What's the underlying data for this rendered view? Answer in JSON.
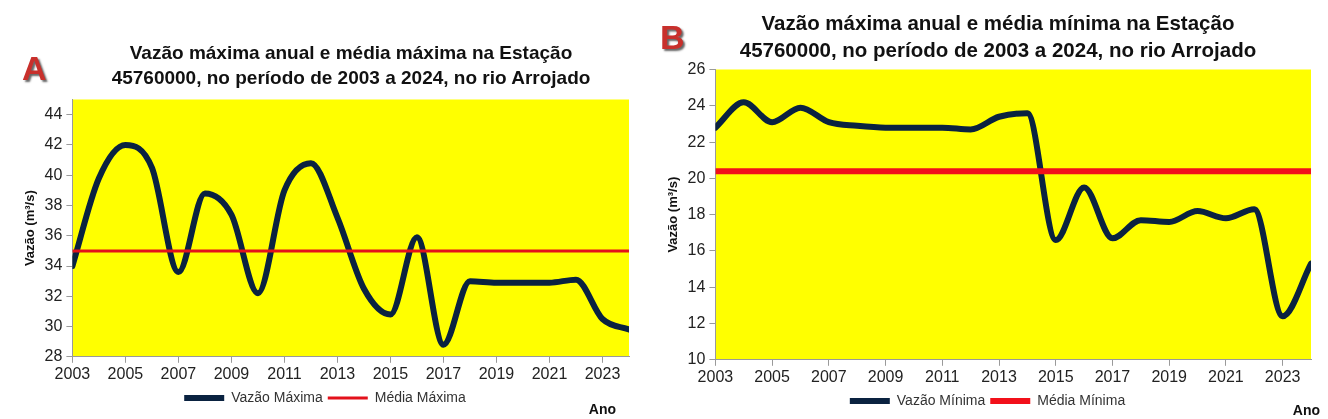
{
  "chart_data": [
    {
      "type": "line",
      "title": "Vazão máxima anual e média máxima na Estação\n45760000, no período de 2003 a 2024, no rio Arrojado",
      "xlabel": "Ano",
      "ylabel": "Vazão (m³/s)",
      "annotations": [
        "A"
      ],
      "x": [
        2003,
        2004,
        2005,
        2006,
        2007,
        2008,
        2009,
        2010,
        2011,
        2012,
        2013,
        2014,
        2015,
        2016,
        2017,
        2018,
        2019,
        2020,
        2021,
        2022,
        2023,
        2024
      ],
      "series": [
        {
          "name": "Vazão Máxima",
          "color": "#0a2240",
          "values": [
            34.0,
            39.8,
            42.0,
            40.5,
            33.6,
            38.8,
            37.4,
            32.2,
            39.0,
            40.8,
            37.2,
            32.5,
            30.8,
            35.9,
            28.8,
            33.0,
            32.9,
            32.9,
            32.9,
            33.1,
            30.5,
            29.8
          ]
        }
      ],
      "ref_lines": [
        {
          "axis": "y",
          "value": 35.0,
          "label": "Média Máxima",
          "color": "#e3111b"
        }
      ],
      "xlim": [
        2003,
        2024
      ],
      "xticks": [
        2003,
        2005,
        2007,
        2009,
        2011,
        2013,
        2015,
        2017,
        2019,
        2021,
        2023
      ],
      "ylim": [
        28,
        45
      ],
      "yticks": [
        28,
        30,
        32,
        34,
        36,
        38,
        40,
        42,
        44
      ],
      "grid": false,
      "legend": "bottom",
      "marker": "none",
      "line_style": "solid"
    },
    {
      "type": "line",
      "title": "Vazão máxima anual e média mínima na Estação\n45760000, no período de 2003 a 2024, no rio Arrojado",
      "xlabel": "Ano",
      "ylabel": "Vazão (m³/s)",
      "annotations": [
        "B"
      ],
      "x": [
        2003,
        2004,
        2005,
        2006,
        2007,
        2008,
        2009,
        2010,
        2011,
        2012,
        2013,
        2014,
        2015,
        2016,
        2017,
        2018,
        2019,
        2020,
        2021,
        2022,
        2023,
        2024
      ],
      "series": [
        {
          "name": "Vazão Mínima",
          "color": "#0a2240",
          "values": [
            22.8,
            24.2,
            23.1,
            23.9,
            23.1,
            22.9,
            22.8,
            22.8,
            22.8,
            22.7,
            23.4,
            23.6,
            16.6,
            19.5,
            16.7,
            17.7,
            17.6,
            18.2,
            17.8,
            18.3,
            12.4,
            15.3
          ]
        }
      ],
      "ref_lines": [
        {
          "axis": "y",
          "value": 20.4,
          "label": "Média Mínima",
          "color": "#f2101a"
        }
      ],
      "xlim": [
        2003,
        2024
      ],
      "xticks": [
        2003,
        2005,
        2007,
        2009,
        2011,
        2013,
        2015,
        2017,
        2019,
        2021,
        2023
      ],
      "ylim": [
        10,
        26
      ],
      "yticks": [
        10,
        12,
        14,
        16,
        18,
        20,
        22,
        24,
        26
      ],
      "grid": false,
      "legend": "bottom",
      "marker": "none",
      "line_style": "solid"
    }
  ]
}
